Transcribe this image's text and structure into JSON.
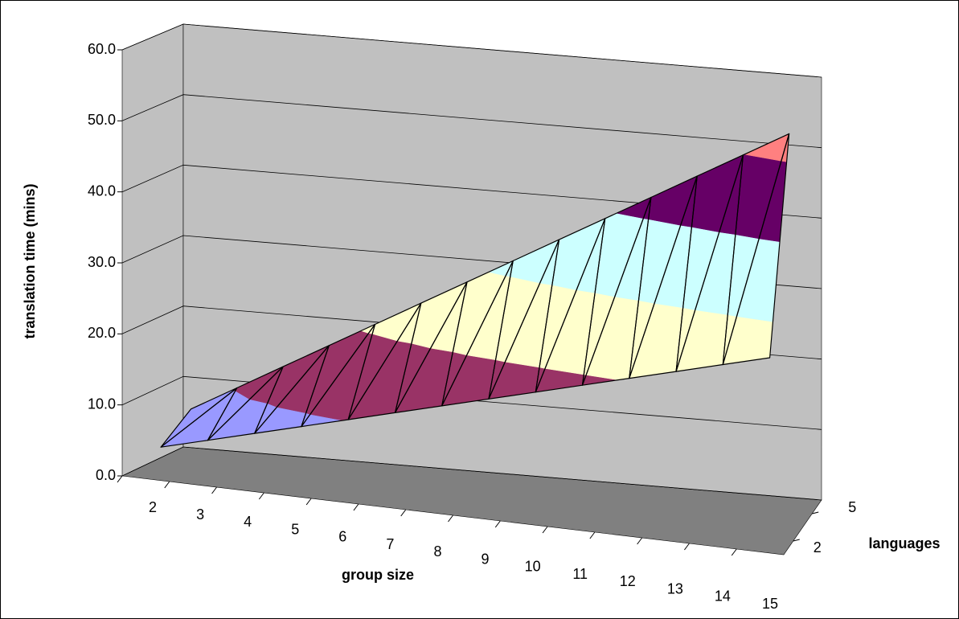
{
  "chart_data": {
    "type": "surface3d",
    "y_label": "translation time (mins)",
    "x_label": "group size",
    "z_label": "languages",
    "categories": [
      "2",
      "3",
      "4",
      "5",
      "6",
      "7",
      "8",
      "9",
      "10",
      "11",
      "12",
      "13",
      "14",
      "15"
    ],
    "series": [
      {
        "name": "2",
        "values": [
          3.4,
          5.1,
          6.8,
          8.5,
          10.2,
          11.9,
          13.6,
          15.3,
          17.0,
          18.7,
          20.4,
          22.1,
          23.8,
          25.5
        ]
      },
      {
        "name": "5",
        "values": [
          6.7,
          10.3,
          13.9,
          17.5,
          21.1,
          24.7,
          28.3,
          31.9,
          35.5,
          39.1,
          42.7,
          46.3,
          49.9,
          53.5
        ]
      }
    ],
    "ylim": [
      0,
      60
    ],
    "yticks": [
      {
        "value": 0,
        "label": "0.0"
      },
      {
        "value": 10,
        "label": "10.0"
      },
      {
        "value": 20,
        "label": "20.0"
      },
      {
        "value": 30,
        "label": "30.0"
      },
      {
        "value": 40,
        "label": "40.0"
      },
      {
        "value": 50,
        "label": "50.0"
      },
      {
        "value": 60,
        "label": "60.0"
      }
    ],
    "band_colors": [
      "#9999ff",
      "#993366",
      "#ffffcc",
      "#ccffff",
      "#660066",
      "#ff8080"
    ],
    "grid": true
  }
}
